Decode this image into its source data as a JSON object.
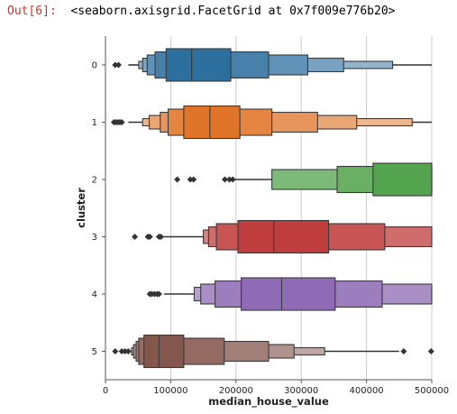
{
  "output": {
    "prompt": "Out[6]:",
    "text": "<seaborn.axisgrid.FacetGrid at 0x7f009e776b20>"
  },
  "chart_data": {
    "type": "boxen",
    "orientation": "horizontal",
    "xlabel": "median_house_value",
    "ylabel": "cluster",
    "xlim": [
      0,
      500000
    ],
    "xticks": [
      0,
      100000,
      200000,
      300000,
      400000,
      500000
    ],
    "xtick_labels": [
      "0",
      "100000",
      "200000",
      "300000",
      "400000",
      "500000"
    ],
    "grid": "vertical",
    "categories": [
      "0",
      "1",
      "2",
      "3",
      "4",
      "5"
    ],
    "series": [
      {
        "category": "0",
        "color": "#2d6f9f",
        "median": 132000,
        "boxes": [
          [
            93000,
            192000
          ],
          [
            76000,
            250000
          ],
          [
            64000,
            310000
          ],
          [
            57000,
            365000
          ],
          [
            51000,
            440000
          ]
        ],
        "whiskers": [
          [
            35000,
            51000
          ],
          [
            440000,
            500000
          ]
        ],
        "outliers": [
          15000,
          20000
        ]
      },
      {
        "category": "1",
        "color": "#e07428",
        "median": 160000,
        "boxes": [
          [
            120000,
            206000
          ],
          [
            96000,
            255000
          ],
          [
            84000,
            325000
          ],
          [
            67000,
            385000
          ],
          [
            57000,
            470000
          ]
        ],
        "whiskers": [
          [
            35000,
            57000
          ],
          [
            470000,
            500000
          ]
        ],
        "outliers": [
          13000,
          16000,
          19000,
          22000,
          25000
        ]
      },
      {
        "category": "2",
        "color": "#54a44f",
        "median": 500000,
        "boxes": [
          [
            410000,
            500000
          ],
          [
            355000,
            500000
          ],
          [
            255000,
            500000
          ]
        ],
        "whiskers": [
          [
            195000,
            255000
          ]
        ],
        "outliers": [
          110000,
          130000,
          135000,
          183000,
          190000,
          195000
        ]
      },
      {
        "category": "3",
        "color": "#c03d3d",
        "median": 258000,
        "boxes": [
          [
            203000,
            342000
          ],
          [
            170000,
            428000
          ],
          [
            158000,
            500000
          ],
          [
            150000,
            500000
          ]
        ],
        "whiskers": [
          [
            85000,
            150000
          ]
        ],
        "outliers": [
          45000,
          65000,
          68000,
          82000,
          85000
        ]
      },
      {
        "category": "4",
        "color": "#8f6bb5",
        "median": 270000,
        "boxes": [
          [
            208000,
            352000
          ],
          [
            168000,
            424000
          ],
          [
            146000,
            500000
          ],
          [
            136000,
            500000
          ]
        ],
        "whiskers": [
          [
            90000,
            136000
          ]
        ],
        "outliers": [
          68000,
          71000,
          75000,
          79000,
          82000
        ]
      },
      {
        "category": "5",
        "color": "#84574e",
        "median": 82000,
        "boxes": [
          [
            59000,
            120000
          ],
          [
            51000,
            182000
          ],
          [
            47000,
            250000
          ],
          [
            43000,
            289000
          ],
          [
            40000,
            336000
          ]
        ],
        "whiskers": [
          [
            30000,
            40000
          ],
          [
            336000,
            450000
          ]
        ],
        "outliers": [
          15000,
          25000,
          30000,
          35000,
          457000,
          499000
        ]
      }
    ]
  }
}
